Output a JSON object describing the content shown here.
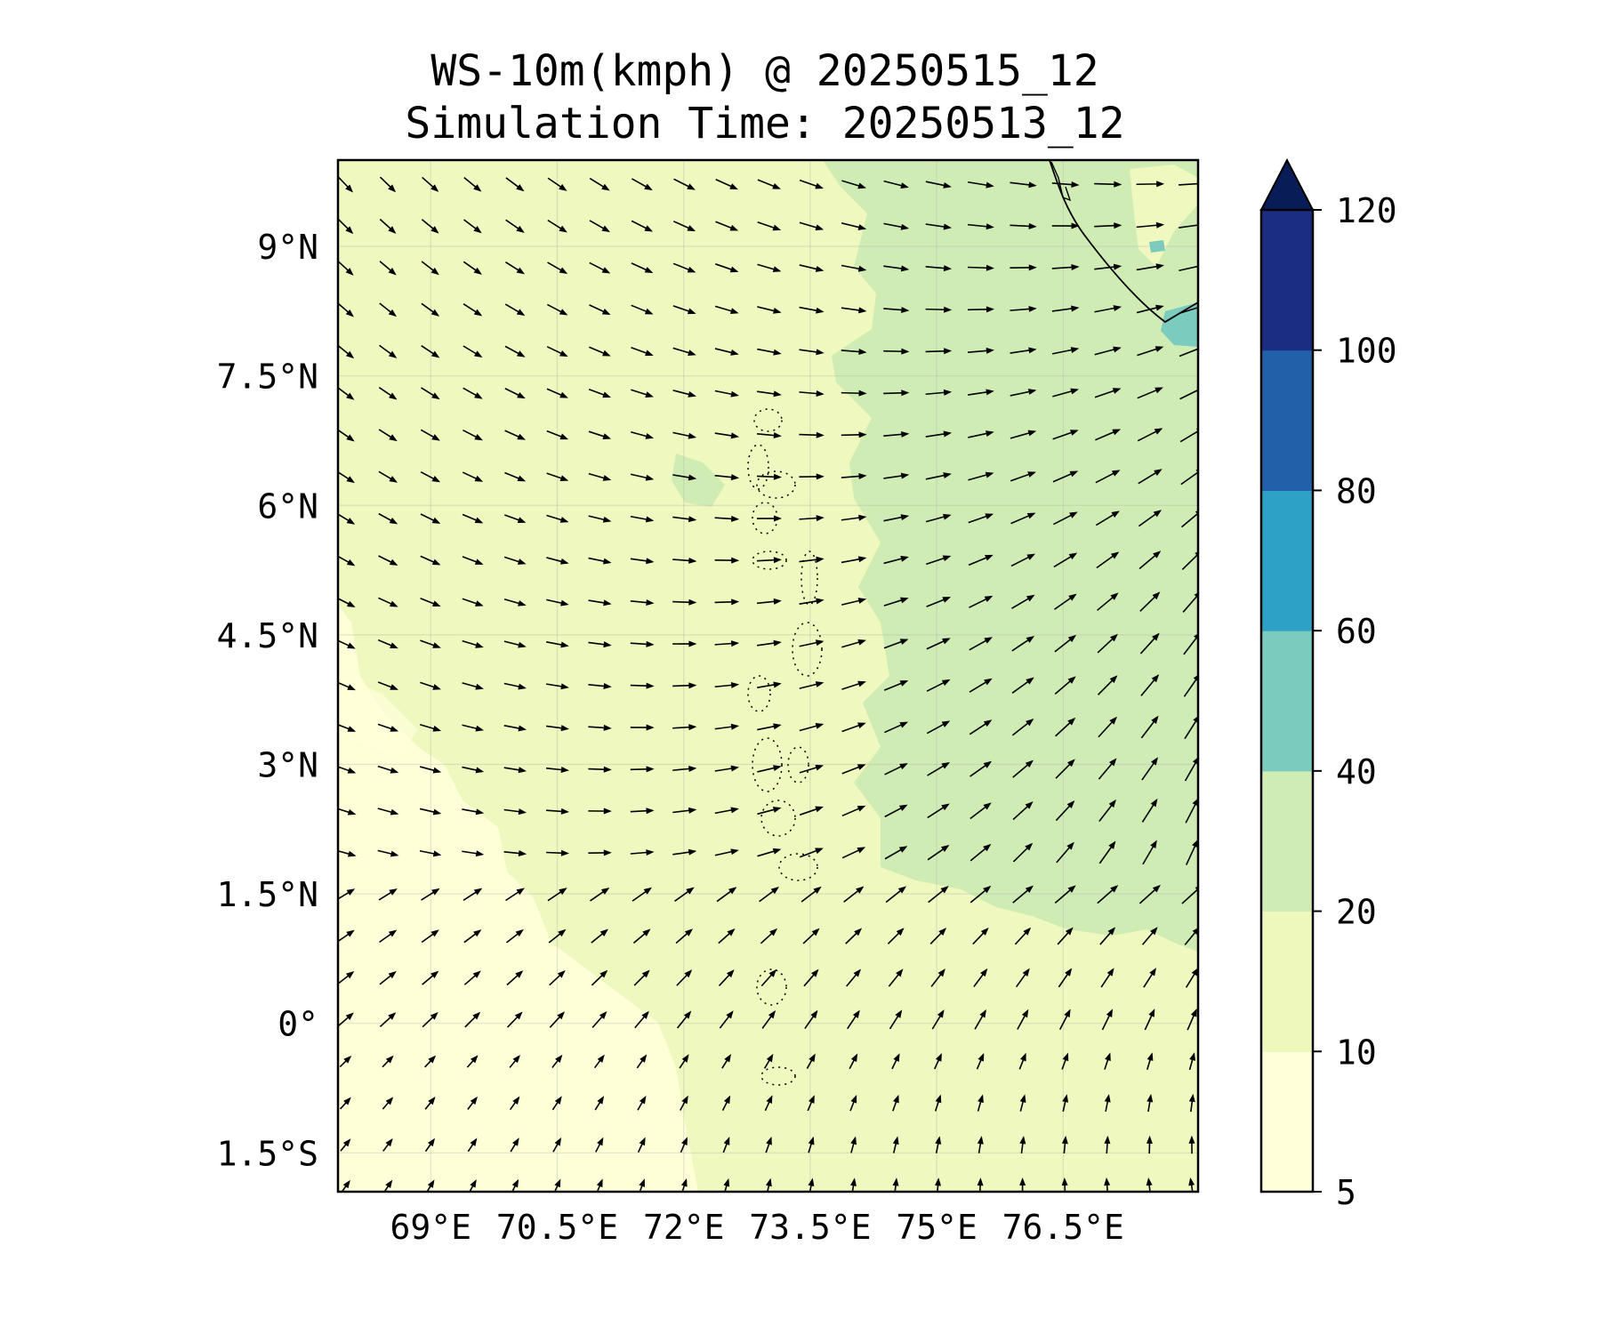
{
  "title_line1": "WS-10m(kmph) @ 20250515_12",
  "title_line2": "Simulation Time: 20250513_12",
  "map": {
    "lon_range": [
      67.9,
      78.1
    ],
    "lat_range": [
      -1.95,
      10.0
    ],
    "lat_ticks": [
      {
        "value": 9,
        "label": "9°N"
      },
      {
        "value": 7.5,
        "label": "7.5°N"
      },
      {
        "value": 6,
        "label": "6°N"
      },
      {
        "value": 4.5,
        "label": "4.5°N"
      },
      {
        "value": 3,
        "label": "3°N"
      },
      {
        "value": 1.5,
        "label": "1.5°N"
      },
      {
        "value": 0,
        "label": "0°"
      },
      {
        "value": -1.5,
        "label": "1.5°S"
      }
    ],
    "lon_ticks": [
      {
        "value": 69,
        "label": "69°E"
      },
      {
        "value": 70.5,
        "label": "70.5°E"
      },
      {
        "value": 72,
        "label": "72°E"
      },
      {
        "value": 73.5,
        "label": "73.5°E"
      },
      {
        "value": 75,
        "label": "75°E"
      },
      {
        "value": 76.5,
        "label": "76.5°E"
      }
    ],
    "gridlines": true,
    "background_color": "#eff8be",
    "coastline_color": "#000000"
  },
  "colorbar": {
    "levels": [
      5,
      10,
      20,
      40,
      60,
      80,
      100,
      120
    ],
    "labels": [
      "5",
      "10",
      "20",
      "40",
      "60",
      "80",
      "100",
      "120"
    ],
    "colors": [
      "#ffffd9",
      "#eef8bd",
      "#cfecb4",
      "#7ccbbf",
      "#2ea1c6",
      "#2260aa",
      "#1b2c83"
    ],
    "extend_color": "#081d58",
    "extend": "max"
  },
  "regions": [
    {
      "name": "calm-zone-west",
      "bin": "5-10",
      "color": "#ffffd9"
    },
    {
      "name": "moderate-zone-east",
      "bin": "20-40",
      "color": "#cfecb4"
    },
    {
      "name": "strong-patch-sri-lanka",
      "bin": "40-60",
      "color": "#7ccbbf"
    }
  ]
}
